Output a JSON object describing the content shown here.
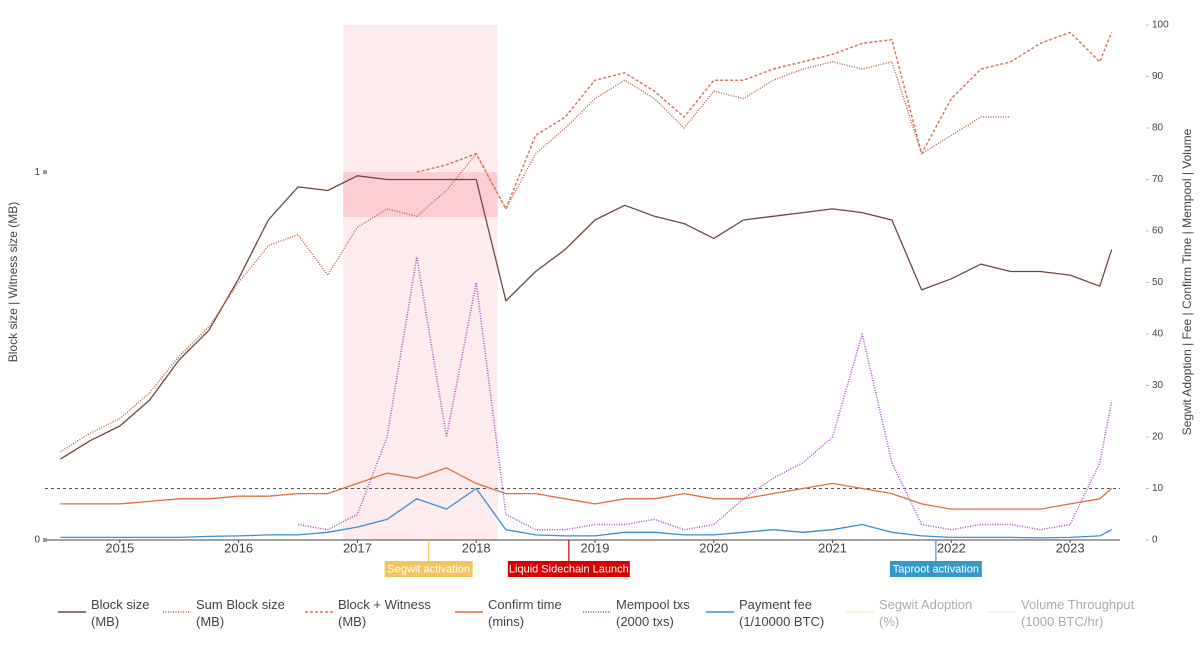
{
  "chart_data": {
    "type": "line",
    "y_label": "Block size | Witness size (MB)",
    "y2_label": "Segwit Adoption | Fee | Confirm Time | Mempool | Volume",
    "x": [
      2014.5,
      2014.75,
      2015,
      2015.25,
      2015.5,
      2015.75,
      2016,
      2016.25,
      2016.5,
      2016.75,
      2017,
      2017.25,
      2017.5,
      2017.75,
      2018,
      2018.25,
      2018.5,
      2018.75,
      2019,
      2019.25,
      2019.5,
      2019.75,
      2020,
      2020.25,
      2020.5,
      2020.75,
      2021,
      2021.25,
      2021.5,
      2021.75,
      2022,
      2022.25,
      2022.5,
      2022.75,
      2023,
      2023.25,
      2023.35
    ],
    "xlim": [
      2014.37,
      2023.42
    ],
    "xticks": [
      2015,
      2016,
      2017,
      2018,
      2019,
      2020,
      2021,
      2022,
      2023
    ],
    "ylim": [
      0,
      1.4
    ],
    "yticks": [
      0,
      1
    ],
    "y2lim": [
      0,
      100
    ],
    "y2ticks": [
      0,
      10,
      20,
      30,
      40,
      50,
      60,
      70,
      80,
      90,
      100
    ],
    "series": [
      {
        "name": "Block size (MB)",
        "color": "#6e4a3e",
        "dash": "solid",
        "axis": "y",
        "values": [
          0.22,
          0.27,
          0.31,
          0.38,
          0.49,
          0.57,
          0.71,
          0.87,
          0.96,
          0.95,
          0.99,
          0.98,
          0.98,
          0.98,
          0.98,
          0.65,
          0.73,
          0.79,
          0.87,
          0.91,
          0.88,
          0.86,
          0.82,
          0.87,
          0.88,
          0.89,
          0.9,
          0.89,
          0.87,
          0.68,
          0.71,
          0.75,
          0.73,
          0.73,
          0.72,
          0.69,
          0.79
        ]
      },
      {
        "name": "Sum Block size (MB)",
        "color": "#b5684c",
        "dash": "dotted",
        "axis": "y",
        "values": [
          0.24,
          0.29,
          0.33,
          0.4,
          0.5,
          0.58,
          0.7,
          0.8,
          0.83,
          0.72,
          0.85,
          0.9,
          0.88,
          0.95,
          1.05,
          0.9,
          1.05,
          1.12,
          1.2,
          1.25,
          1.2,
          1.12,
          1.22,
          1.2,
          1.25,
          1.28,
          1.3,
          1.28,
          1.3,
          1.05,
          1.1,
          1.15,
          1.15,
          null,
          null,
          null,
          null
        ]
      },
      {
        "name": "Block + Witness (MB)",
        "color": "#d9765f",
        "dash": "dashed",
        "axis": "y",
        "values": [
          null,
          null,
          null,
          null,
          null,
          null,
          null,
          null,
          null,
          null,
          null,
          null,
          1.0,
          1.02,
          1.05,
          0.9,
          1.1,
          1.15,
          1.25,
          1.27,
          1.22,
          1.15,
          1.25,
          1.25,
          1.28,
          1.3,
          1.32,
          1.35,
          1.36,
          1.05,
          1.2,
          1.28,
          1.3,
          1.35,
          1.38,
          1.3,
          1.38
        ]
      },
      {
        "name": "Confirm time (mins)",
        "color": "#e0703f",
        "dash": "solid",
        "axis": "y2",
        "values": [
          7,
          7,
          7,
          7.5,
          8,
          8,
          8.5,
          8.5,
          9,
          9,
          11,
          13,
          12,
          14,
          11,
          9,
          9,
          8,
          7,
          8,
          8,
          9,
          8,
          8,
          9,
          10,
          11,
          10,
          9,
          7,
          6,
          6,
          6,
          6,
          7,
          8,
          10
        ]
      },
      {
        "name": "Mempool txs (2000 txs)",
        "color": "#a84cc0",
        "dash": "dotted",
        "axis": "y2",
        "values": [
          null,
          null,
          null,
          null,
          null,
          null,
          null,
          null,
          3,
          2,
          5,
          20,
          55,
          20,
          50,
          5,
          2,
          2,
          3,
          3,
          4,
          2,
          3,
          8,
          12,
          15,
          20,
          40,
          15,
          3,
          2,
          3,
          3,
          2,
          3,
          15,
          27
        ]
      },
      {
        "name": "Payment fee (1/10000 BTC)",
        "color": "#3a8fd9",
        "dash": "solid",
        "axis": "y2",
        "values": [
          0.5,
          0.5,
          0.5,
          0.5,
          0.5,
          0.7,
          0.8,
          1,
          1,
          1.5,
          2.5,
          4,
          8,
          6,
          10,
          2,
          1,
          0.8,
          0.8,
          1.5,
          1.5,
          1,
          1,
          1.5,
          2,
          1.5,
          2,
          3,
          1.5,
          0.8,
          0.5,
          0.5,
          0.5,
          0.4,
          0.5,
          0.8,
          2
        ]
      },
      {
        "name": "Segwit Adoption (%)",
        "color": "#f5d98a",
        "dash": "solid",
        "axis": "y2",
        "visible": "legendonly"
      },
      {
        "name": "Volume Throughput (1000 BTC/hr)",
        "color": "#87c5f0",
        "dash": "dotted",
        "axis": "y2",
        "visible": "legendonly"
      }
    ],
    "shapes": [
      {
        "x0": 2016.88,
        "x1": 2018.18,
        "y0": 0,
        "y1": 1.4,
        "color": "#fde8ea"
      },
      {
        "x0": 2016.88,
        "x1": 2018.18,
        "y0": 0.878,
        "y1": 1,
        "color": "#f9c9cc"
      }
    ],
    "hline_y2": 10,
    "annotations": [
      {
        "x": 2017.6,
        "text": "Segwit activation",
        "color": "#f3c35c"
      },
      {
        "x": 2018.78,
        "text": "Liquid Sidechain Launch",
        "color": "#d50000"
      },
      {
        "x": 2021.87,
        "text": "Taproot activation",
        "color": "#3498c8"
      }
    ]
  }
}
